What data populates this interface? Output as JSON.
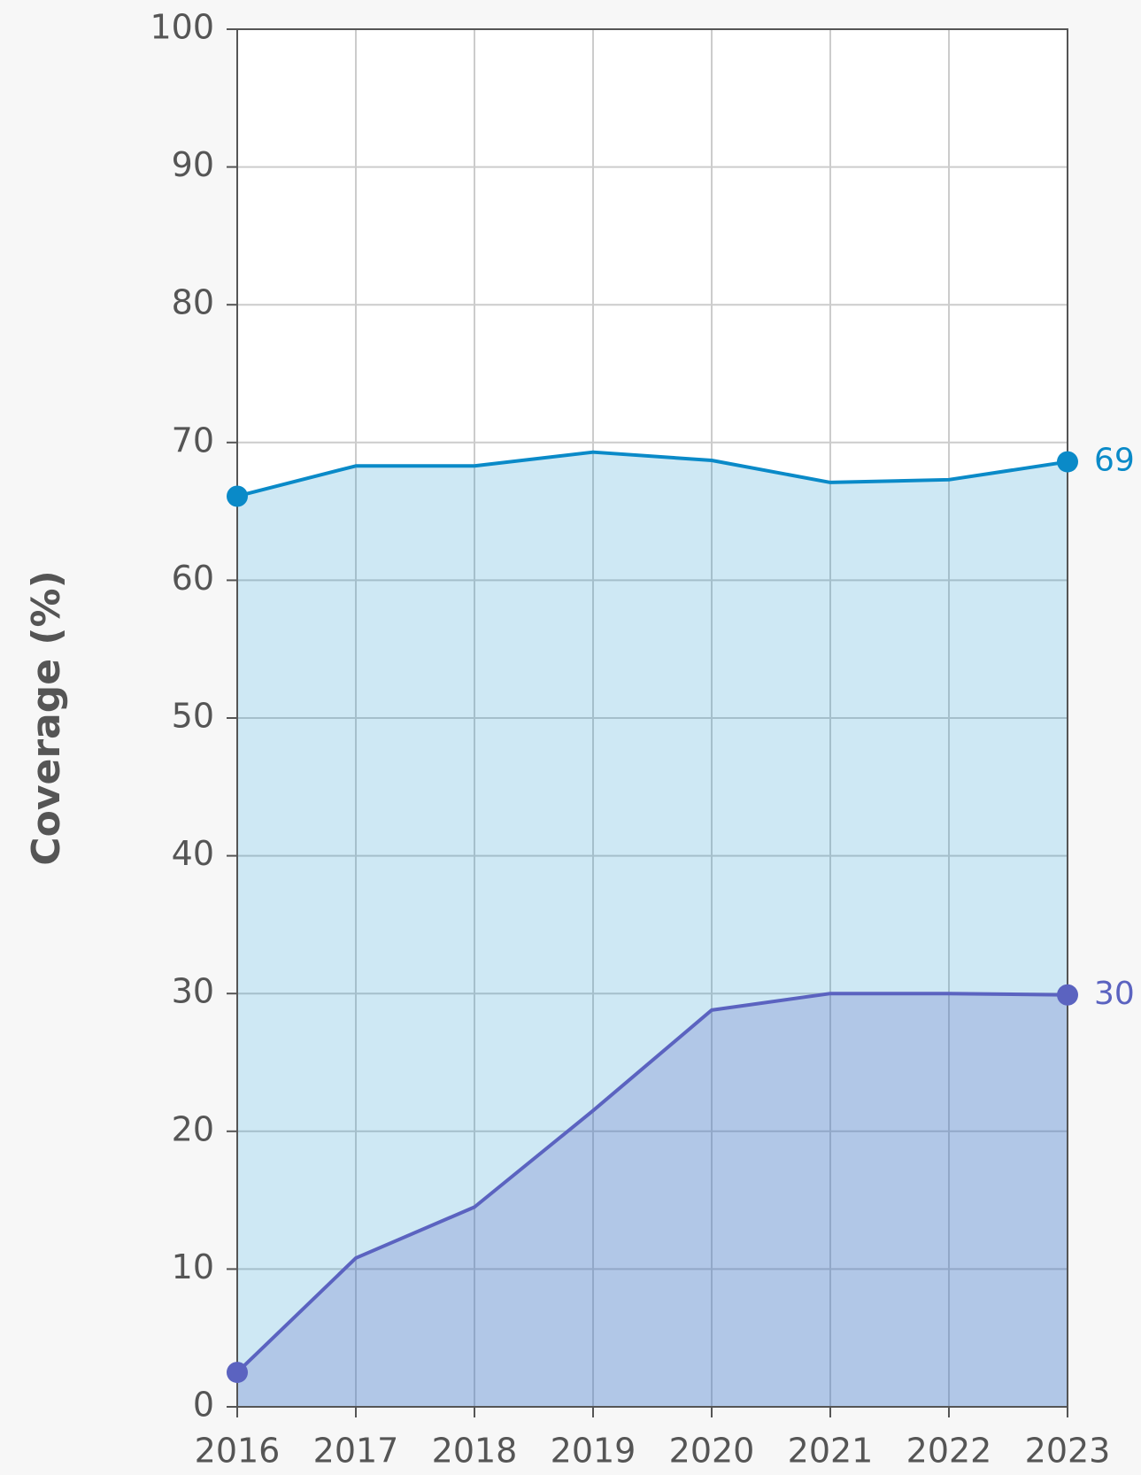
{
  "chart_data": {
    "type": "area",
    "y_label": "Coverage (%)",
    "categories": [
      "2016",
      "2017",
      "2018",
      "2019",
      "2020",
      "2021",
      "2022",
      "2023"
    ],
    "series": [
      {
        "color": "#0a8ac8",
        "fill": "#0a8ac8",
        "values": [
          66.1,
          68.3,
          68.3,
          69.3,
          68.7,
          67.1,
          67.3,
          68.6
        ],
        "value_labels": [
          null,
          null,
          null,
          null,
          null,
          null,
          null,
          "69"
        ]
      },
      {
        "color": "#5b63c0",
        "fill": "#5b63c0",
        "values": [
          2.5,
          10.8,
          14.5,
          21.5,
          28.8,
          30.0,
          30.0,
          29.9
        ],
        "value_labels": [
          null,
          null,
          null,
          null,
          null,
          null,
          null,
          "30"
        ]
      }
    ],
    "ylim": [
      0,
      100
    ],
    "yticks": [
      0,
      10,
      20,
      30,
      40,
      50,
      60,
      70,
      80,
      90,
      100
    ],
    "grid": true
  }
}
